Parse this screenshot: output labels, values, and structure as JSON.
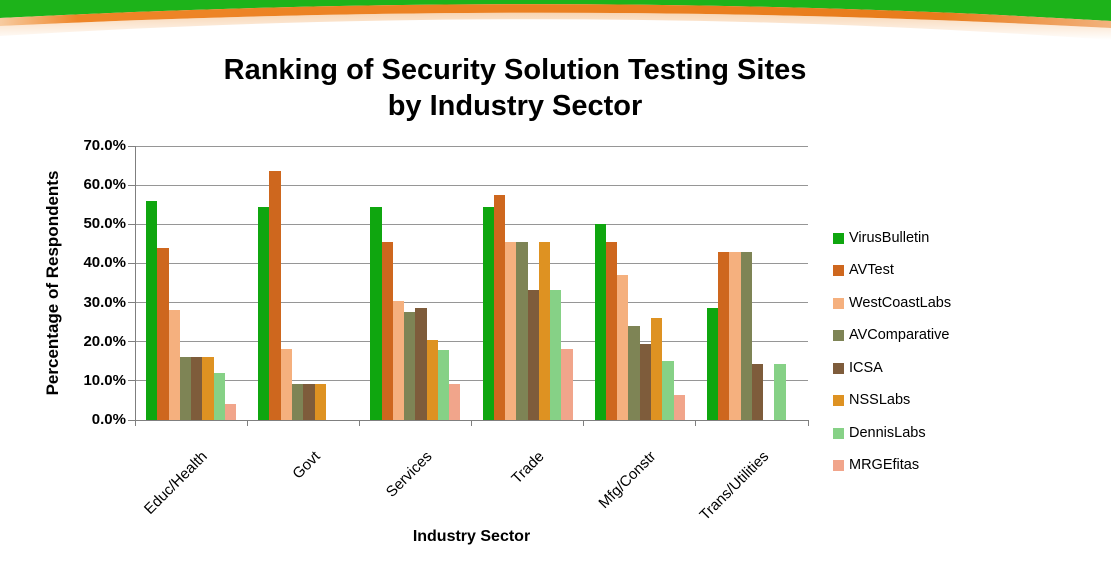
{
  "banner": {
    "green": "#1db31a",
    "orange": "#e87c1c",
    "orange_light": "#f7cba0",
    "orange_right": "#f2b27d"
  },
  "title": {
    "line1": "Ranking of Security Solution Testing Sites",
    "line2": "by Industry Sector"
  },
  "chart_data": {
    "type": "bar",
    "title": "Ranking of Security Solution Testing Sites by Industry Sector",
    "xlabel": "Industry Sector",
    "ylabel": "Percentage of Respondents",
    "ylim": [
      0,
      70
    ],
    "ytick_step": 10,
    "ytick_labels": [
      "0.0%",
      "10.0%",
      "20.0%",
      "30.0%",
      "40.0%",
      "50.0%",
      "60.0%",
      "70.0%"
    ],
    "grid": true,
    "legend_position": "right",
    "categories": [
      "Educ/Health",
      "Govt",
      "Services",
      "Trade",
      "Mfg/Constr",
      "Trans/Utilities"
    ],
    "series": [
      {
        "name": "VirusBulletin",
        "color": "#0fa60f",
        "values": [
          56.0,
          54.5,
          54.5,
          54.5,
          50.0,
          28.6
        ]
      },
      {
        "name": "AVTest",
        "color": "#ce671e",
        "values": [
          44.0,
          63.6,
          45.5,
          57.6,
          45.5,
          42.9
        ]
      },
      {
        "name": "WestCoastLabs",
        "color": "#f5b07e",
        "values": [
          28.0,
          18.2,
          30.5,
          45.5,
          37.0,
          42.9
        ]
      },
      {
        "name": "AVComparative",
        "color": "#7e8455",
        "values": [
          16.0,
          9.1,
          27.5,
          45.5,
          24.0,
          42.9
        ]
      },
      {
        "name": "ICSA",
        "color": "#7e5c3b",
        "values": [
          16.0,
          9.1,
          28.5,
          33.3,
          19.5,
          14.3
        ]
      },
      {
        "name": "NSSLabs",
        "color": "#de9222",
        "values": [
          16.0,
          9.1,
          20.5,
          45.5,
          26.0,
          0
        ]
      },
      {
        "name": "DennisLabs",
        "color": "#86d186",
        "values": [
          12.0,
          0,
          18.0,
          33.3,
          15.0,
          14.3
        ]
      },
      {
        "name": "MRGEfitas",
        "color": "#f1a58b",
        "values": [
          4.0,
          0,
          9.1,
          18.2,
          6.5,
          0
        ]
      }
    ]
  }
}
